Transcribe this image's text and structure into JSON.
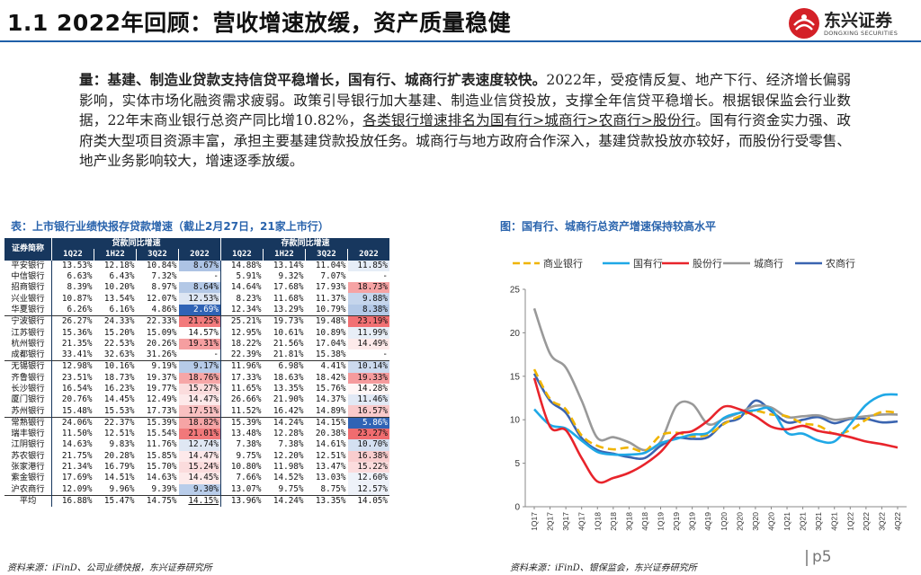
{
  "header": {
    "title": "1.1 2022年回顾：营收增速放缓，资产质量稳健"
  },
  "logo": {
    "name": "东兴证券",
    "sub": "DONGXING SECURITIES"
  },
  "paragraph": {
    "bold": "量：基建、制造业贷款支持信贷平稳增长，国有行、城商行扩表速度较快。",
    "text1": "2022年，受疫情反复、地产下行、经济增长偏弱影响，实体市场化融资需求疲弱。政策引导银行加大基建、制造业信贷投放，支撑全年信贷平稳增长。根据银保监会行业数据，22年末商业银行总资产同比增10.82%，",
    "underline": "各类银行增速排名为国有行>城商行>农商行>股份行",
    "text2": "。国有行资金实力强、政府类大型项目资源丰富，承担主要基建贷款投放任务。城商行与地方政府合作深入，基建贷款投放亦较好，而股份行受零售、地产业务影响较大，增速逐季放缓。"
  },
  "table_caption": "表：上市银行业绩快报存贷款增速（截止2月27日，21家上市行）",
  "chart_caption": "图：国有行、城商行总资产增速保持较高水平",
  "table": {
    "corner": "证券简称",
    "group1": "贷款同比增速",
    "group2": "存款同比增速",
    "periods": [
      "1Q22",
      "1H22",
      "3Q22",
      "2022",
      "1Q22",
      "1H22",
      "3Q22",
      "2022"
    ],
    "rows": [
      {
        "bank": "平安银行",
        "v": [
          "13.53%",
          "12.18%",
          "10.84%",
          "8.67%",
          "14.88%",
          "13.14%",
          "11.04%",
          "11.85%"
        ]
      },
      {
        "bank": "中信银行",
        "v": [
          "6.63%",
          "6.43%",
          "7.32%",
          "-",
          "5.91%",
          "9.32%",
          "7.07%",
          "-"
        ]
      },
      {
        "bank": "招商银行",
        "v": [
          "8.39%",
          "10.20%",
          "8.97%",
          "8.64%",
          "14.64%",
          "17.68%",
          "17.93%",
          "18.73%"
        ]
      },
      {
        "bank": "兴业银行",
        "v": [
          "10.87%",
          "13.54%",
          "12.07%",
          "12.53%",
          "8.23%",
          "11.68%",
          "11.37%",
          "9.88%"
        ]
      },
      {
        "bank": "华夏银行",
        "v": [
          "6.26%",
          "6.16%",
          "4.86%",
          "2.69%",
          "12.34%",
          "13.29%",
          "10.79%",
          "8.38%"
        ]
      },
      {
        "bank": "宁波银行",
        "v": [
          "26.27%",
          "24.33%",
          "22.33%",
          "21.25%",
          "25.21%",
          "19.73%",
          "19.48%",
          "23.19%"
        ]
      },
      {
        "bank": "江苏银行",
        "v": [
          "15.36%",
          "15.20%",
          "15.09%",
          "14.57%",
          "12.95%",
          "10.61%",
          "10.89%",
          "11.99%"
        ]
      },
      {
        "bank": "杭州银行",
        "v": [
          "21.35%",
          "22.53%",
          "20.26%",
          "19.31%",
          "18.22%",
          "21.56%",
          "17.04%",
          "14.49%"
        ]
      },
      {
        "bank": "成都银行",
        "v": [
          "33.41%",
          "32.63%",
          "31.26%",
          "-",
          "22.39%",
          "21.81%",
          "15.38%",
          "-"
        ]
      },
      {
        "bank": "无锡银行",
        "v": [
          "12.98%",
          "10.16%",
          "9.19%",
          "9.17%",
          "11.96%",
          "6.98%",
          "4.41%",
          "10.14%"
        ]
      },
      {
        "bank": "齐鲁银行",
        "v": [
          "23.51%",
          "18.73%",
          "19.37%",
          "18.76%",
          "17.33%",
          "18.63%",
          "18.42%",
          "19.33%"
        ]
      },
      {
        "bank": "长沙银行",
        "v": [
          "16.54%",
          "16.23%",
          "19.77%",
          "15.27%",
          "11.65%",
          "13.35%",
          "15.76%",
          "14.28%"
        ]
      },
      {
        "bank": "厦门银行",
        "v": [
          "20.76%",
          "14.45%",
          "12.49%",
          "14.47%",
          "26.66%",
          "21.90%",
          "14.37%",
          "11.46%"
        ]
      },
      {
        "bank": "苏州银行",
        "v": [
          "15.48%",
          "15.53%",
          "17.73%",
          "17.51%",
          "11.52%",
          "16.42%",
          "14.89%",
          "16.57%"
        ]
      },
      {
        "bank": "常熟银行",
        "v": [
          "24.06%",
          "22.37%",
          "15.39%",
          "18.82%",
          "15.39%",
          "14.24%",
          "14.15%",
          "5.86%"
        ]
      },
      {
        "bank": "瑞丰银行",
        "v": [
          "11.50%",
          "12.51%",
          "15.54%",
          "21.01%",
          "13.48%",
          "12.28%",
          "20.38%",
          "23.27%"
        ]
      },
      {
        "bank": "江阴银行",
        "v": [
          "14.63%",
          "9.83%",
          "11.76%",
          "12.74%",
          "7.38%",
          "7.38%",
          "14.61%",
          "10.70%"
        ]
      },
      {
        "bank": "苏农银行",
        "v": [
          "21.75%",
          "20.28%",
          "15.85%",
          "14.47%",
          "9.75%",
          "12.20%",
          "12.51%",
          "16.38%"
        ]
      },
      {
        "bank": "张家港行",
        "v": [
          "21.34%",
          "16.79%",
          "15.70%",
          "15.24%",
          "10.80%",
          "11.98%",
          "13.47%",
          "15.22%"
        ]
      },
      {
        "bank": "紫金银行",
        "v": [
          "17.69%",
          "14.51%",
          "14.63%",
          "14.45%",
          "7.66%",
          "14.52%",
          "13.03%",
          "12.60%"
        ]
      },
      {
        "bank": "沪农商行",
        "v": [
          "12.09%",
          "9.96%",
          "9.39%",
          "9.30%",
          "13.07%",
          "9.75%",
          "8.75%",
          "12.57%"
        ]
      },
      {
        "bank": "平均",
        "v": [
          "16.88%",
          "15.47%",
          "14.75%",
          "14.15%",
          "13.96%",
          "14.24%",
          "13.35%",
          "14.05%"
        ]
      }
    ]
  },
  "colors": {
    "title_blue": "#2a64ad",
    "header_navy": "#17375e",
    "red": "#e8242b",
    "blue": "#2e6ab5"
  },
  "chart_data": {
    "type": "line",
    "title": "图：国有行、城商行总资产增速保持较高水平",
    "categories": [
      "1Q17",
      "2Q17",
      "3Q17",
      "4Q17",
      "1Q18",
      "2Q18",
      "3Q18",
      "4Q18",
      "1Q19",
      "2Q19",
      "3Q19",
      "4Q19",
      "1Q20",
      "2Q20",
      "3Q20",
      "4Q20",
      "1Q21",
      "2Q21",
      "3Q21",
      "4Q21",
      "1Q22",
      "2Q22",
      "3Q22",
      "4Q22"
    ],
    "ylim": [
      0,
      25
    ],
    "yticks": [
      0,
      5,
      10,
      15,
      20,
      25
    ],
    "legend_position": "top",
    "series": [
      {
        "name": "商业银行",
        "color": "#f0b400",
        "dash": true,
        "values": [
          15.8,
          12.4,
          11.2,
          8.2,
          7.0,
          6.6,
          6.8,
          6.4,
          8.2,
          8.5,
          8.1,
          8.3,
          9.5,
          10.4,
          11.0,
          10.6,
          10.4,
          9.6,
          9.3,
          8.4,
          8.8,
          10.0,
          10.9,
          10.8
        ]
      },
      {
        "name": "国有行",
        "color": "#1fa8e6",
        "dash": false,
        "values": [
          11.2,
          9.4,
          9.0,
          7.6,
          6.3,
          6.0,
          6.0,
          6.2,
          7.3,
          7.8,
          8.3,
          8.5,
          10.2,
          10.8,
          11.1,
          11.2,
          8.5,
          8.4,
          7.6,
          7.5,
          9.5,
          11.7,
          12.8,
          12.9
        ]
      },
      {
        "name": "股份行",
        "color": "#e8242b",
        "dash": false,
        "values": [
          14.8,
          9.2,
          8.8,
          5.6,
          2.9,
          3.3,
          3.9,
          4.9,
          6.3,
          8.3,
          8.7,
          9.9,
          11.5,
          11.2,
          10.4,
          9.2,
          8.9,
          9.3,
          8.7,
          8.4,
          8.0,
          7.5,
          7.2,
          6.8
        ]
      },
      {
        "name": "城商行",
        "color": "#999999",
        "dash": false,
        "values": [
          22.8,
          17.6,
          16.0,
          12.2,
          7.9,
          8.0,
          7.4,
          6.5,
          7.5,
          11.6,
          11.8,
          9.5,
          10.1,
          10.8,
          11.6,
          11.4,
          10.3,
          10.4,
          10.5,
          10.0,
          10.2,
          10.4,
          10.6,
          10.6
        ]
      },
      {
        "name": "农商行",
        "color": "#3a64b0",
        "dash": false,
        "values": [
          15.3,
          12.2,
          10.8,
          7.9,
          6.5,
          6.1,
          5.7,
          5.6,
          7.0,
          7.9,
          7.8,
          8.0,
          9.6,
          10.2,
          12.2,
          11.0,
          9.7,
          10.0,
          10.3,
          9.6,
          10.1,
          10.1,
          9.7,
          9.8
        ]
      }
    ]
  },
  "sources": {
    "left": "资料来源：iFinD、公司业绩快报，东兴证券研究所",
    "right": "资料来源：iFinD、银保监会，东兴证券研究所"
  },
  "page": "p5"
}
